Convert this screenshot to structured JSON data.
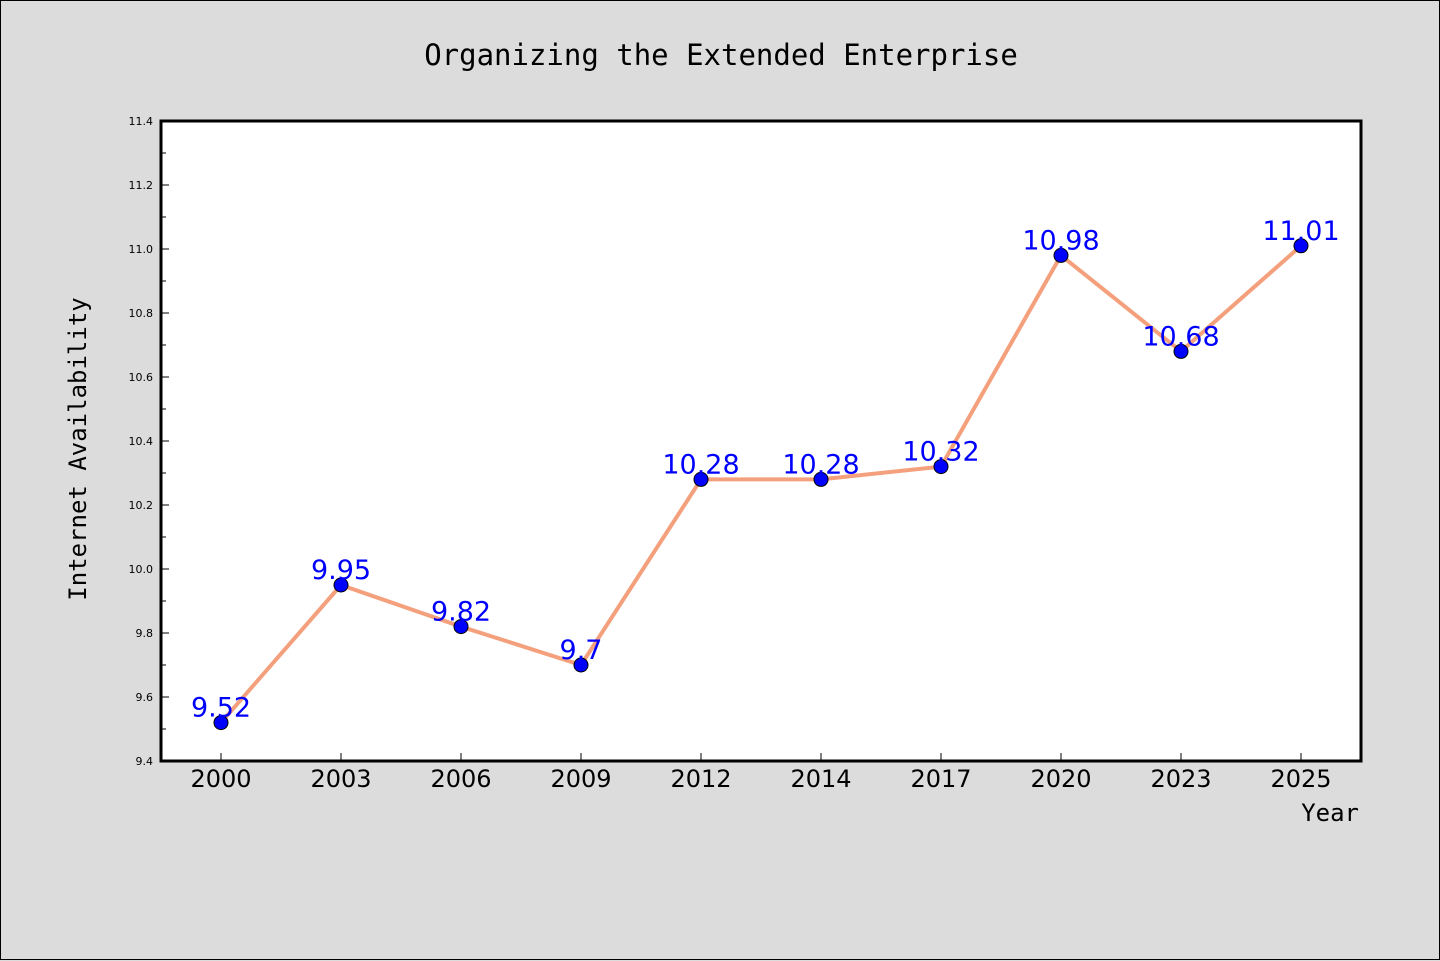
{
  "chart_data": {
    "type": "line",
    "title": "Organizing the Extended Enterprise",
    "xlabel": "Year",
    "ylabel": "Internet Availability",
    "categories": [
      "2000",
      "2003",
      "2006",
      "2009",
      "2012",
      "2014",
      "2017",
      "2020",
      "2023",
      "2025"
    ],
    "series": [
      {
        "values": [
          9.52,
          9.95,
          9.82,
          9.7,
          10.28,
          10.28,
          10.32,
          10.98,
          10.68,
          11.01
        ],
        "data_labels": [
          "9.52",
          "9.95",
          "9.82",
          "9.7",
          "10.28",
          "10.28",
          "10.32",
          "10.98",
          "10.68",
          "11.01"
        ]
      }
    ],
    "ylim": [
      9.4,
      11.4
    ],
    "yticks": [
      "9.4",
      "9.6",
      "9.8",
      "10.0",
      "10.2",
      "10.4",
      "10.6",
      "10.8",
      "11.0",
      "11.2",
      "11.4"
    ],
    "grid": false,
    "legend": false,
    "colors": {
      "line": "#f4a07c",
      "marker": "#0000ff",
      "marker_edge": "#000000",
      "data_label": "#0000ff",
      "plot_background": "#ffffff",
      "figure_background": "#dcdcdc"
    }
  }
}
